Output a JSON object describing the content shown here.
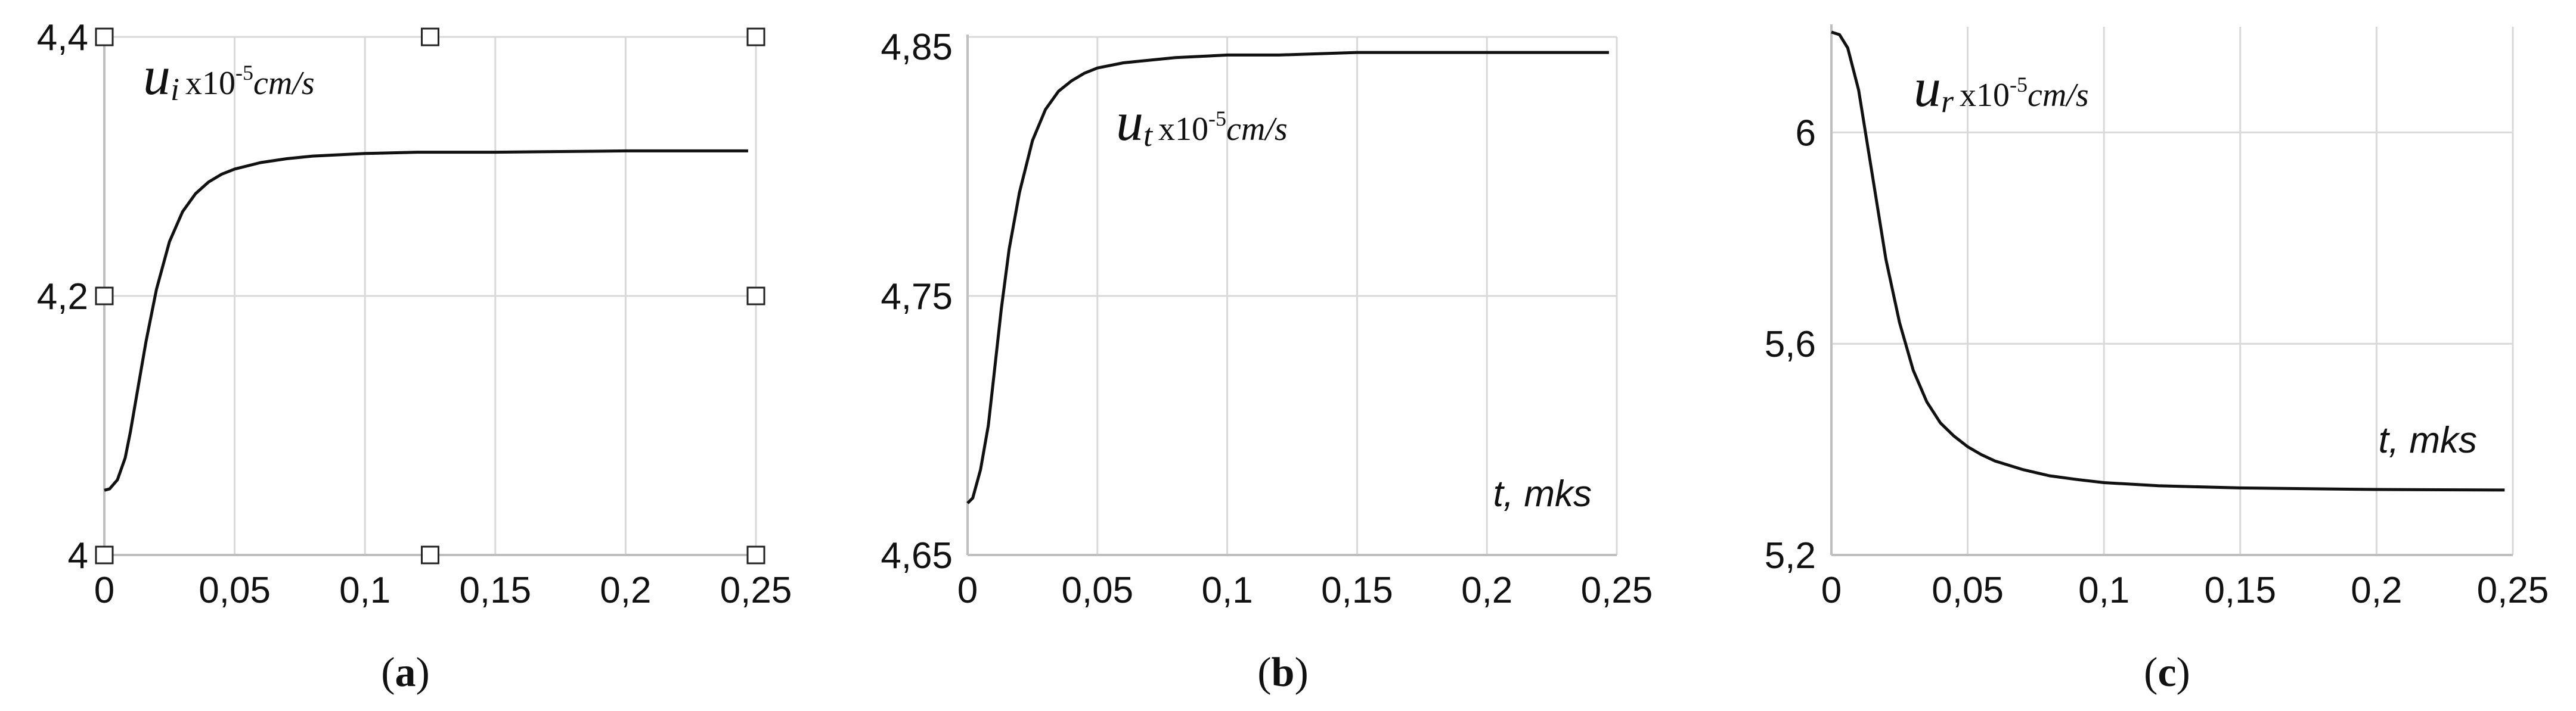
{
  "chart_data": [
    {
      "type": "line",
      "caption": "(a)",
      "caption_letter": "a",
      "annotation": {
        "symbol": "u",
        "subscript": "i",
        "multiplier": "x10",
        "exponent": "-5",
        "unit": "cm/s"
      },
      "xlabel": "",
      "xlim": [
        0,
        0.25
      ],
      "ylim": [
        4.0,
        4.4
      ],
      "xticks": [
        0,
        0.05,
        0.1,
        0.15,
        0.2,
        0.25
      ],
      "xtick_labels": [
        "0",
        "0,05",
        "0,1",
        "0,15",
        "0,2",
        "0,25"
      ],
      "yticks": [
        4.0,
        4.2,
        4.4
      ],
      "ytick_labels": [
        "4",
        "4,2",
        "4,4"
      ],
      "grid": true,
      "selection_handles": true,
      "series": [
        {
          "x": [
            0,
            0.002,
            0.005,
            0.008,
            0.01,
            0.013,
            0.016,
            0.02,
            0.025,
            0.03,
            0.035,
            0.04,
            0.045,
            0.05,
            0.06,
            0.07,
            0.08,
            0.1,
            0.12,
            0.15,
            0.2,
            0.247
          ],
          "y": [
            4.05,
            4.051,
            4.058,
            4.075,
            4.095,
            4.13,
            4.165,
            4.205,
            4.242,
            4.265,
            4.279,
            4.288,
            4.294,
            4.298,
            4.303,
            4.306,
            4.308,
            4.31,
            4.311,
            4.311,
            4.312,
            4.312
          ]
        }
      ]
    },
    {
      "type": "line",
      "caption": "(b)",
      "caption_letter": "b",
      "annotation": {
        "symbol": "u",
        "subscript": "t",
        "multiplier": "x10",
        "exponent": "-5",
        "unit": "cm/s"
      },
      "xlabel": "t, mks",
      "xlim": [
        0,
        0.25
      ],
      "ylim": [
        4.65,
        4.85
      ],
      "xticks": [
        0,
        0.05,
        0.1,
        0.15,
        0.2,
        0.25
      ],
      "xtick_labels": [
        "0",
        "0,05",
        "0,1",
        "0,15",
        "0,2",
        "0,25"
      ],
      "yticks": [
        4.65,
        4.75,
        4.85
      ],
      "ytick_labels": [
        "4,65",
        "4,75",
        "4,85"
      ],
      "grid": true,
      "selection_handles": false,
      "series": [
        {
          "x": [
            0,
            0.002,
            0.005,
            0.008,
            0.01,
            0.013,
            0.016,
            0.02,
            0.025,
            0.03,
            0.035,
            0.04,
            0.045,
            0.05,
            0.06,
            0.07,
            0.08,
            0.1,
            0.12,
            0.15,
            0.2,
            0.247
          ],
          "y": [
            4.67,
            4.672,
            4.683,
            4.7,
            4.718,
            4.745,
            4.768,
            4.79,
            4.81,
            4.822,
            4.829,
            4.833,
            4.836,
            4.838,
            4.84,
            4.841,
            4.842,
            4.843,
            4.843,
            4.844,
            4.844,
            4.844
          ]
        }
      ]
    },
    {
      "type": "line",
      "caption": "(c)",
      "caption_letter": "c",
      "annotation": {
        "symbol": "u",
        "subscript": "r",
        "multiplier": "x10",
        "exponent": "-5",
        "unit": "cm/s"
      },
      "xlabel": "t, mks",
      "xlim": [
        0,
        0.25
      ],
      "ylim": [
        5.2,
        6.2
      ],
      "xticks": [
        0,
        0.05,
        0.1,
        0.15,
        0.2,
        0.25
      ],
      "xtick_labels": [
        "0",
        "0,05",
        "0,1",
        "0,15",
        "0,2",
        "0,25"
      ],
      "yticks": [
        5.2,
        5.6,
        6.0
      ],
      "ytick_labels": [
        "5,2",
        "5,6",
        "6"
      ],
      "grid": true,
      "selection_handles": false,
      "series": [
        {
          "x": [
            0,
            0.003,
            0.006,
            0.01,
            0.015,
            0.02,
            0.025,
            0.03,
            0.035,
            0.04,
            0.045,
            0.05,
            0.055,
            0.06,
            0.07,
            0.08,
            0.09,
            0.1,
            0.12,
            0.15,
            0.2,
            0.247
          ],
          "y": [
            6.19,
            6.185,
            6.16,
            6.08,
            5.92,
            5.76,
            5.64,
            5.55,
            5.49,
            5.45,
            5.425,
            5.405,
            5.39,
            5.378,
            5.362,
            5.35,
            5.343,
            5.337,
            5.331,
            5.327,
            5.324,
            5.323
          ]
        }
      ]
    }
  ]
}
